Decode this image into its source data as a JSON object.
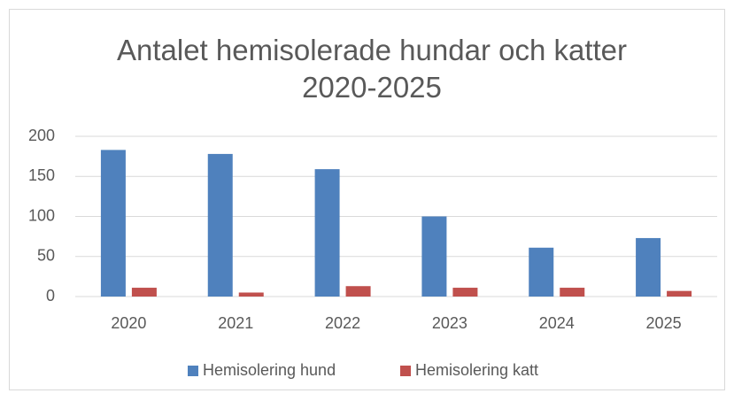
{
  "chart_data": {
    "type": "bar",
    "title": "Antalet hemisolerade hundar och katter 2020-2025",
    "categories": [
      "2020",
      "2021",
      "2022",
      "2023",
      "2024",
      "2025"
    ],
    "series": [
      {
        "name": "Hemisolering hund",
        "color": "#4f81bd",
        "values": [
          183,
          178,
          159,
          100,
          61,
          73
        ]
      },
      {
        "name": "Hemisolering katt",
        "color": "#c0504d",
        "values": [
          11,
          5,
          13,
          11,
          11,
          7
        ]
      }
    ],
    "ylim": [
      0,
      200
    ],
    "yticks": [
      0,
      50,
      100,
      150,
      200
    ],
    "grid": true,
    "legend": "bottom"
  }
}
